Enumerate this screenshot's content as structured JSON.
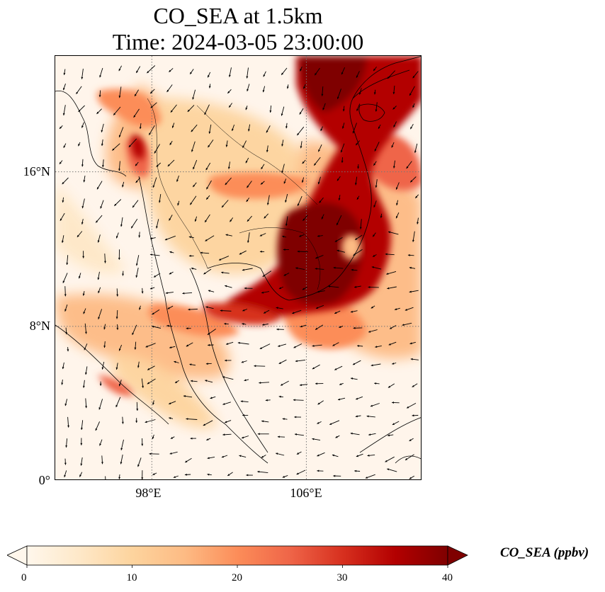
{
  "title": {
    "line1": "CO_SEA at 1.5km",
    "line2": "Time: 2024-03-05 23:00:00"
  },
  "map": {
    "projection": "PlateCarree",
    "extent": {
      "lon_min": 93,
      "lon_max": 112,
      "lat_min": 0,
      "lat_max": 22
    },
    "gridlines": {
      "style": "dotted",
      "lons": [
        98,
        106
      ],
      "lats": [
        8,
        16
      ]
    },
    "lat_ticks": [
      {
        "value": 0,
        "label": "0°"
      },
      {
        "value": 8,
        "label": "8°N"
      },
      {
        "value": 16,
        "label": "16°N"
      }
    ],
    "lon_ticks": [
      {
        "value": 98,
        "label": "98°E"
      },
      {
        "value": 106,
        "label": "106°E"
      }
    ],
    "wind_vectors": true,
    "coastlines": true,
    "borders": true
  },
  "colorbar": {
    "label": "CO_SEA (ppbv)",
    "min": 0,
    "max": 40,
    "ticks": [
      "0",
      "10",
      "20",
      "30",
      "40"
    ],
    "extend": "both",
    "colormap": "OrRd",
    "colors": [
      "#fff7ec",
      "#fee8c8",
      "#fdd49e",
      "#fdbb84",
      "#fc8d59",
      "#ef6548",
      "#d7301f",
      "#b30000",
      "#7f0000"
    ]
  }
}
